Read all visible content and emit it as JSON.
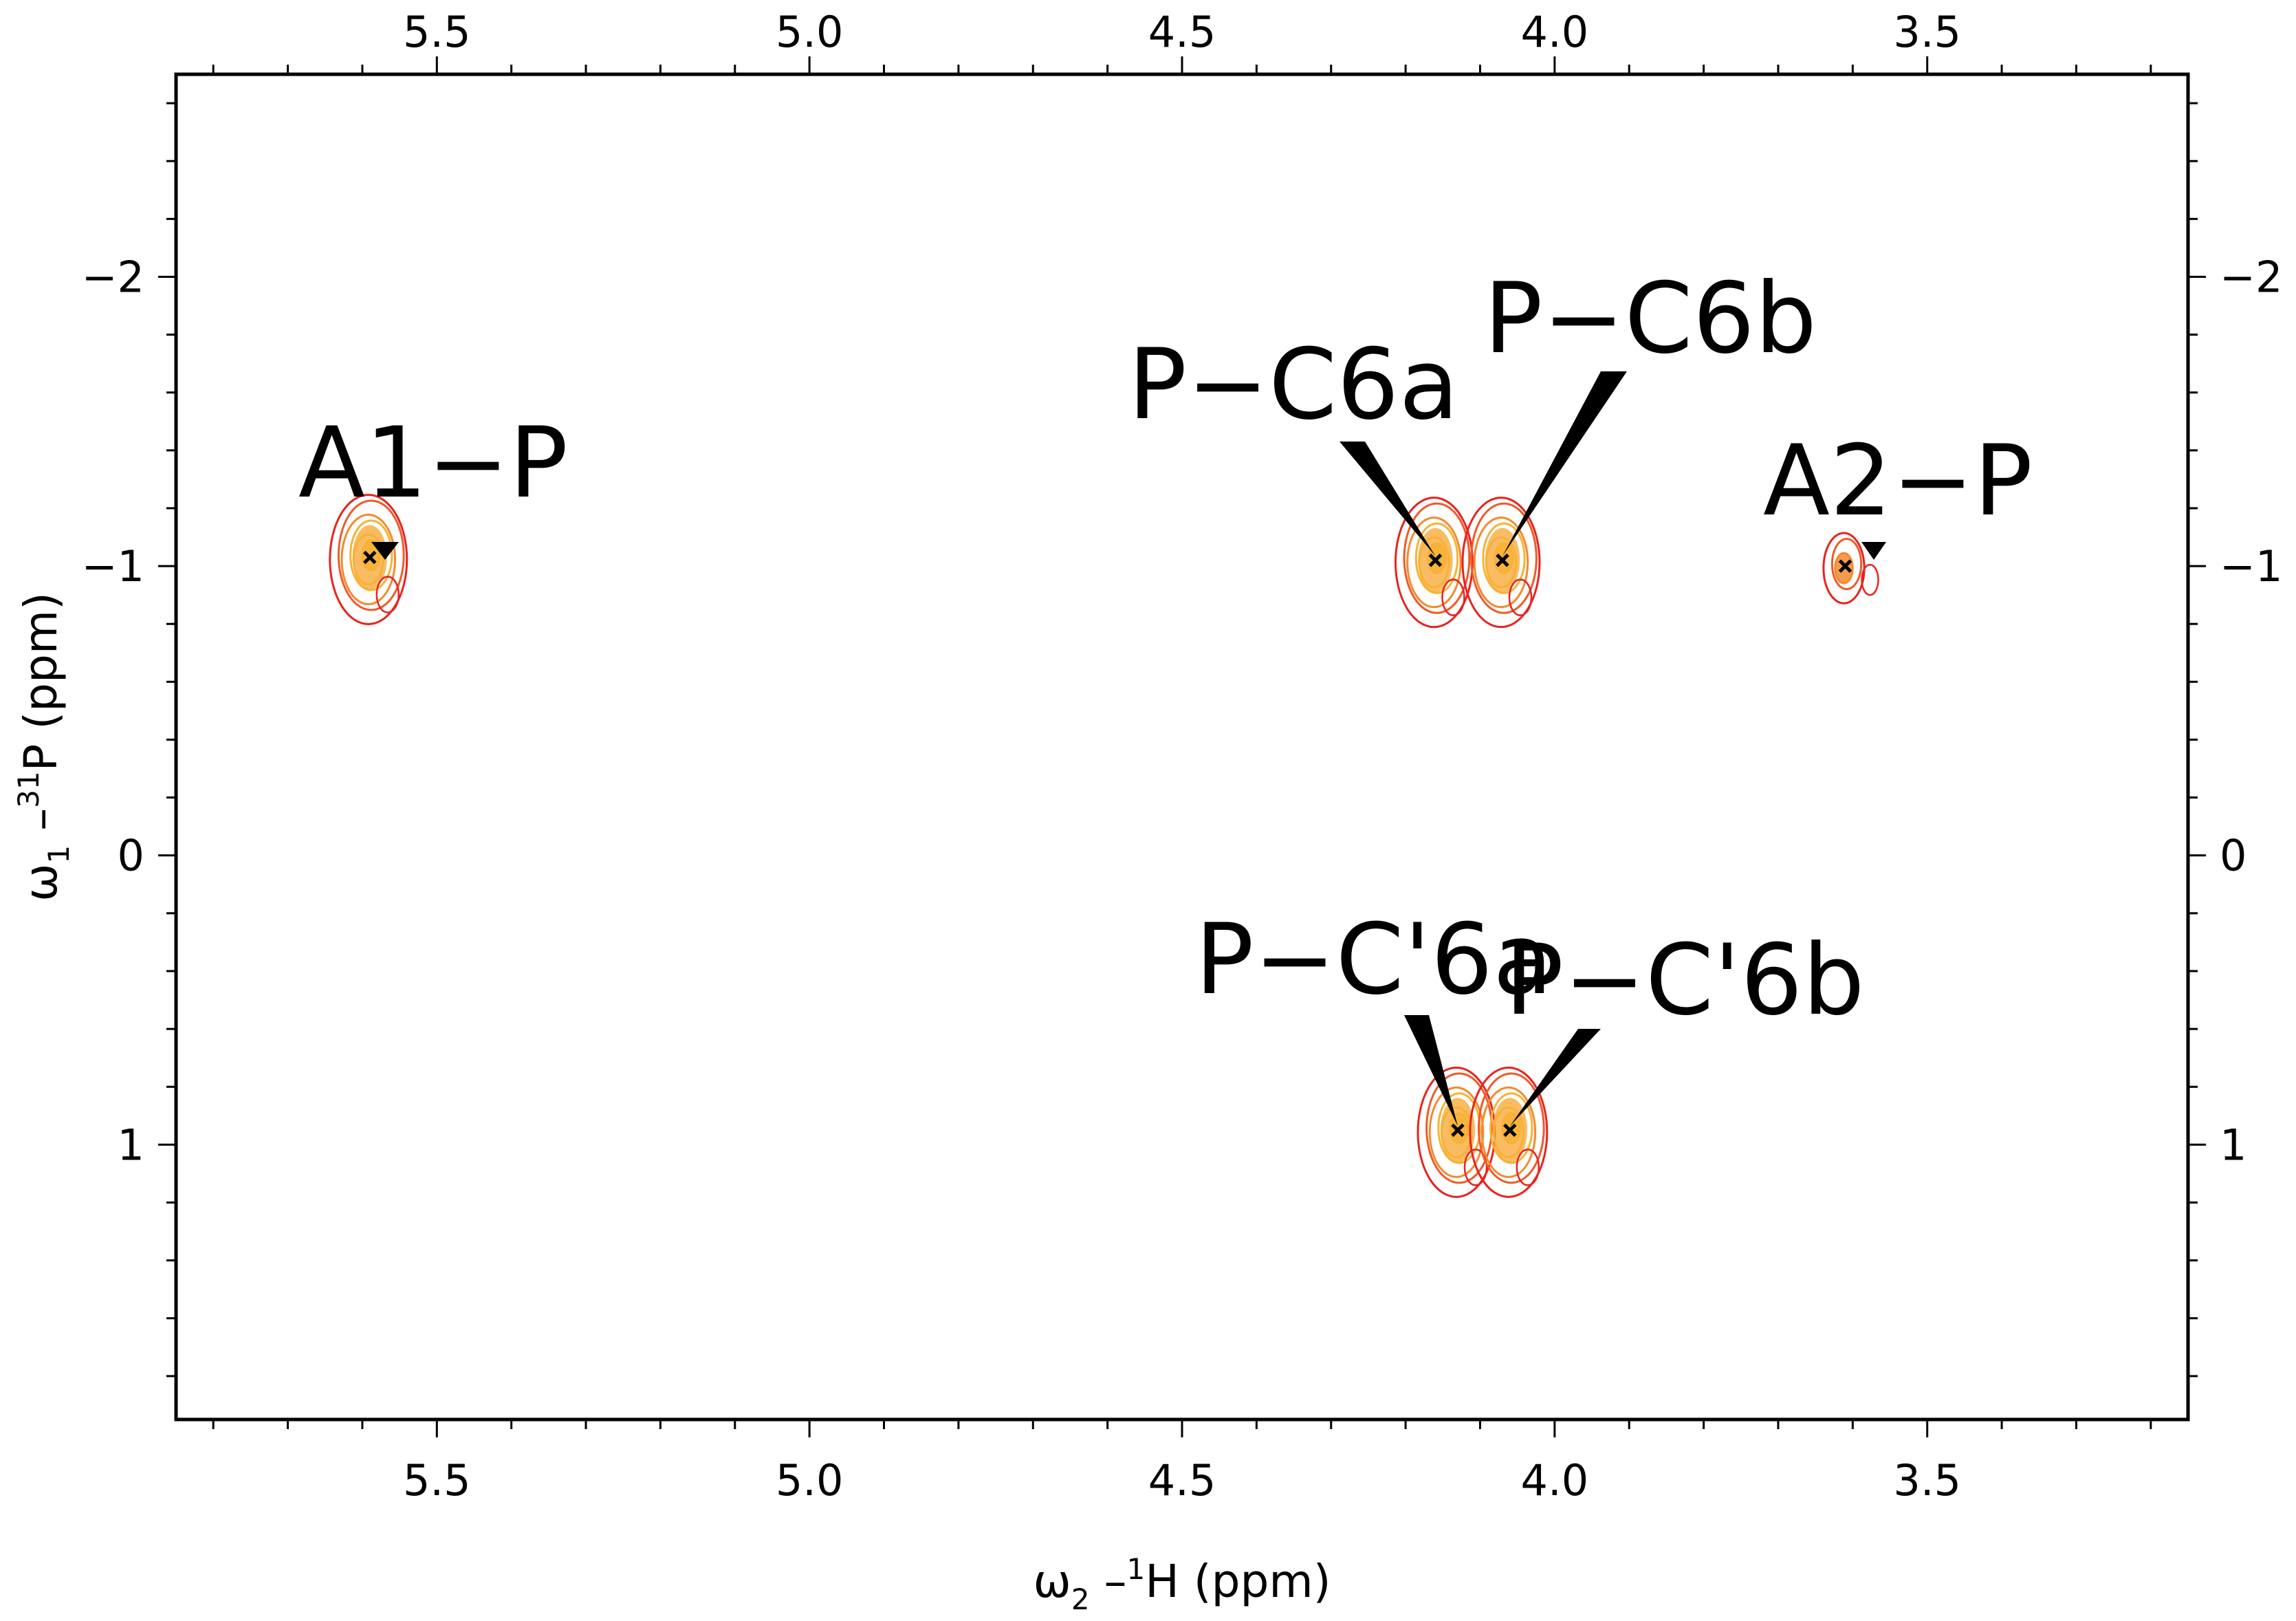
{
  "chart_data": {
    "type": "scatter",
    "subtype": "2d-nmr-contour",
    "title": "",
    "x_axis": {
      "symbol": "ω",
      "index": "2",
      "dash": " –",
      "isotope_mass": "1",
      "nucleus": "H",
      "unit": " (ppm)",
      "range": [
        5.85,
        3.15
      ],
      "reversed": true,
      "major_ticks": [
        5.5,
        5.0,
        4.5,
        4.0,
        3.5
      ],
      "tick_labels": [
        "5.5",
        "5.0",
        "4.5",
        "4.0",
        "3.5"
      ],
      "minor_step": 0.1
    },
    "y_axis": {
      "symbol": "ω",
      "index": "1",
      "dash": " –",
      "isotope_mass": "31",
      "nucleus": "P",
      "unit": " (ppm)",
      "range": [
        -2.7,
        1.95
      ],
      "reversed": true,
      "major_ticks": [
        -2,
        -1,
        0,
        1
      ],
      "tick_labels": [
        "−2",
        "−1",
        "0",
        "1"
      ],
      "minor_step": 0.2
    },
    "peaks": [
      {
        "label": "A1−P",
        "x": 5.59,
        "y": -1.03,
        "intensity": 1.0
      },
      {
        "label": "P−C6a",
        "x": 4.16,
        "y": -1.02,
        "intensity": 1.0
      },
      {
        "label": "P−C6b",
        "x": 4.07,
        "y": -1.02,
        "intensity": 1.0
      },
      {
        "label": "A2−P",
        "x": 3.61,
        "y": -1.0,
        "intensity": 0.45
      },
      {
        "label": "P−C'6a",
        "x": 4.13,
        "y": 0.95,
        "intensity": 1.0
      },
      {
        "label": "P−C'6b",
        "x": 4.06,
        "y": 0.95,
        "intensity": 1.0
      }
    ],
    "contour_colors": [
      "#e8231f",
      "#ef5a2a",
      "#f48a2e",
      "#f9b233",
      "#fbd24a"
    ]
  }
}
